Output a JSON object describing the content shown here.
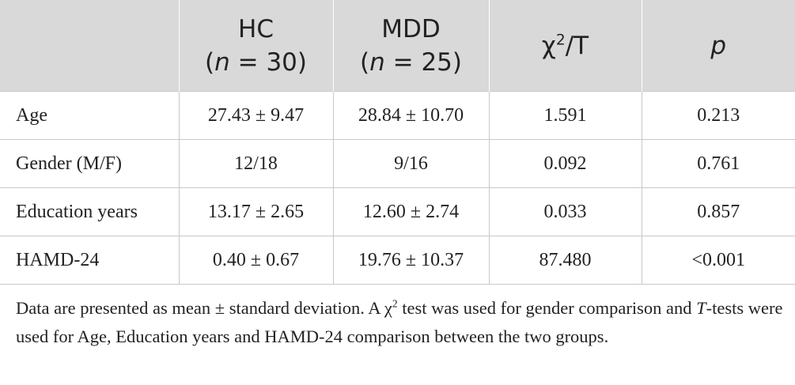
{
  "table": {
    "headers": [
      {
        "line1": "",
        "line2": ""
      },
      {
        "line1": "HC",
        "n_symbol": "n",
        "n_rest": " = 30)"
      },
      {
        "line1": "MDD",
        "n_symbol": "n",
        "n_rest": " = 25)"
      },
      {
        "chi_text": "χ",
        "chi_sup": "2",
        "chi_rest": "/T"
      },
      {
        "p_text": "p"
      }
    ],
    "rows": [
      {
        "label": "Age",
        "hc": "27.43 ± 9.47",
        "mdd": "28.84 ± 10.70",
        "stat": "1.591",
        "p": "0.213"
      },
      {
        "label": "Gender (M/F)",
        "hc": "12/18",
        "mdd": "9/16",
        "stat": "0.092",
        "p": "0.761"
      },
      {
        "label": "Education years",
        "hc": "13.17 ± 2.65",
        "mdd": "12.60 ± 2.74",
        "stat": "0.033",
        "p": "0.857"
      },
      {
        "label": "HAMD-24",
        "hc": "0.40 ± 0.67",
        "mdd": "19.76 ± 10.37",
        "stat": "87.480",
        "p": "<0.001"
      }
    ]
  },
  "note": {
    "part1": "Data are presented as mean ± standard deviation. A χ",
    "sup": "2",
    "part2": " test was used for gender comparison and ",
    "t_ital": "T",
    "part3": "-tests were used for Age, Education years and HAMD-24 comparison between the two groups."
  }
}
